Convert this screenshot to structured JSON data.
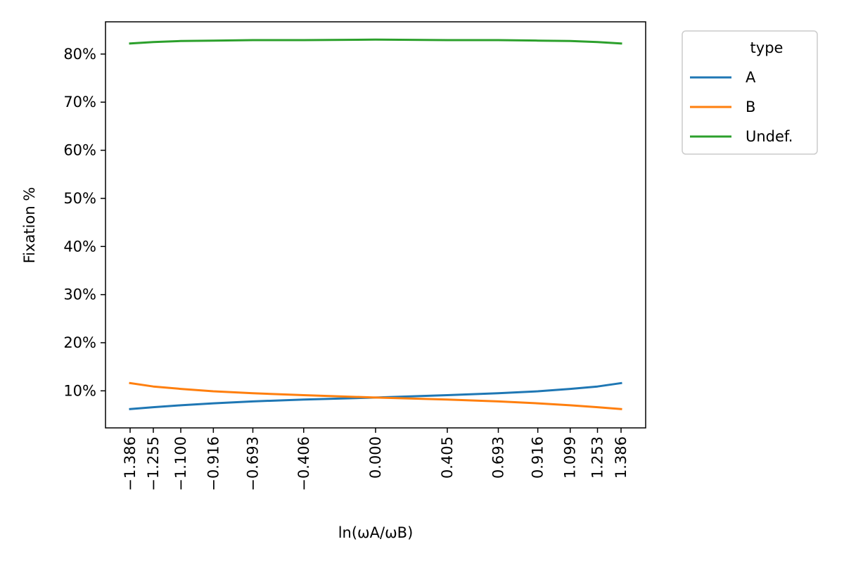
{
  "chart_data": {
    "type": "line",
    "title": "",
    "xlabel": "ln(ωA/ωB)",
    "ylabel": "Fixation %",
    "x": [
      -1.386,
      -1.255,
      -1.1,
      -0.916,
      -0.693,
      -0.406,
      0.0,
      0.405,
      0.693,
      0.916,
      1.099,
      1.253,
      1.386
    ],
    "x_tick_labels": [
      "−1.386",
      "−1.255",
      "−1.100",
      "−0.916",
      "−0.693",
      "−0.406",
      "0.000",
      "0.405",
      "0.693",
      "0.916",
      "1.099",
      "1.253",
      "1.386"
    ],
    "y_ticks": [
      10,
      20,
      30,
      40,
      50,
      60,
      70,
      80
    ],
    "y_tick_labels": [
      "10%",
      "20%",
      "30%",
      "40%",
      "50%",
      "60%",
      "70%",
      "80%"
    ],
    "xlim": [
      -1.525,
      1.525
    ],
    "ylim": [
      2.3,
      86.7
    ],
    "grid": false,
    "legend": {
      "title": "type",
      "placement": "outside top-right"
    },
    "series": [
      {
        "name": "A",
        "color": "#1f77b4",
        "values": [
          6.2,
          6.6,
          7.0,
          7.4,
          7.8,
          8.2,
          8.6,
          9.1,
          9.5,
          9.9,
          10.4,
          10.9,
          11.6
        ]
      },
      {
        "name": "B",
        "color": "#ff7f0e",
        "values": [
          11.6,
          10.9,
          10.4,
          9.9,
          9.5,
          9.1,
          8.6,
          8.2,
          7.8,
          7.4,
          7.0,
          6.6,
          6.2
        ]
      },
      {
        "name": "Undef.",
        "color": "#2ca02c",
        "values": [
          82.2,
          82.5,
          82.7,
          82.8,
          82.9,
          82.9,
          83.0,
          82.9,
          82.9,
          82.8,
          82.7,
          82.5,
          82.2
        ]
      }
    ]
  }
}
